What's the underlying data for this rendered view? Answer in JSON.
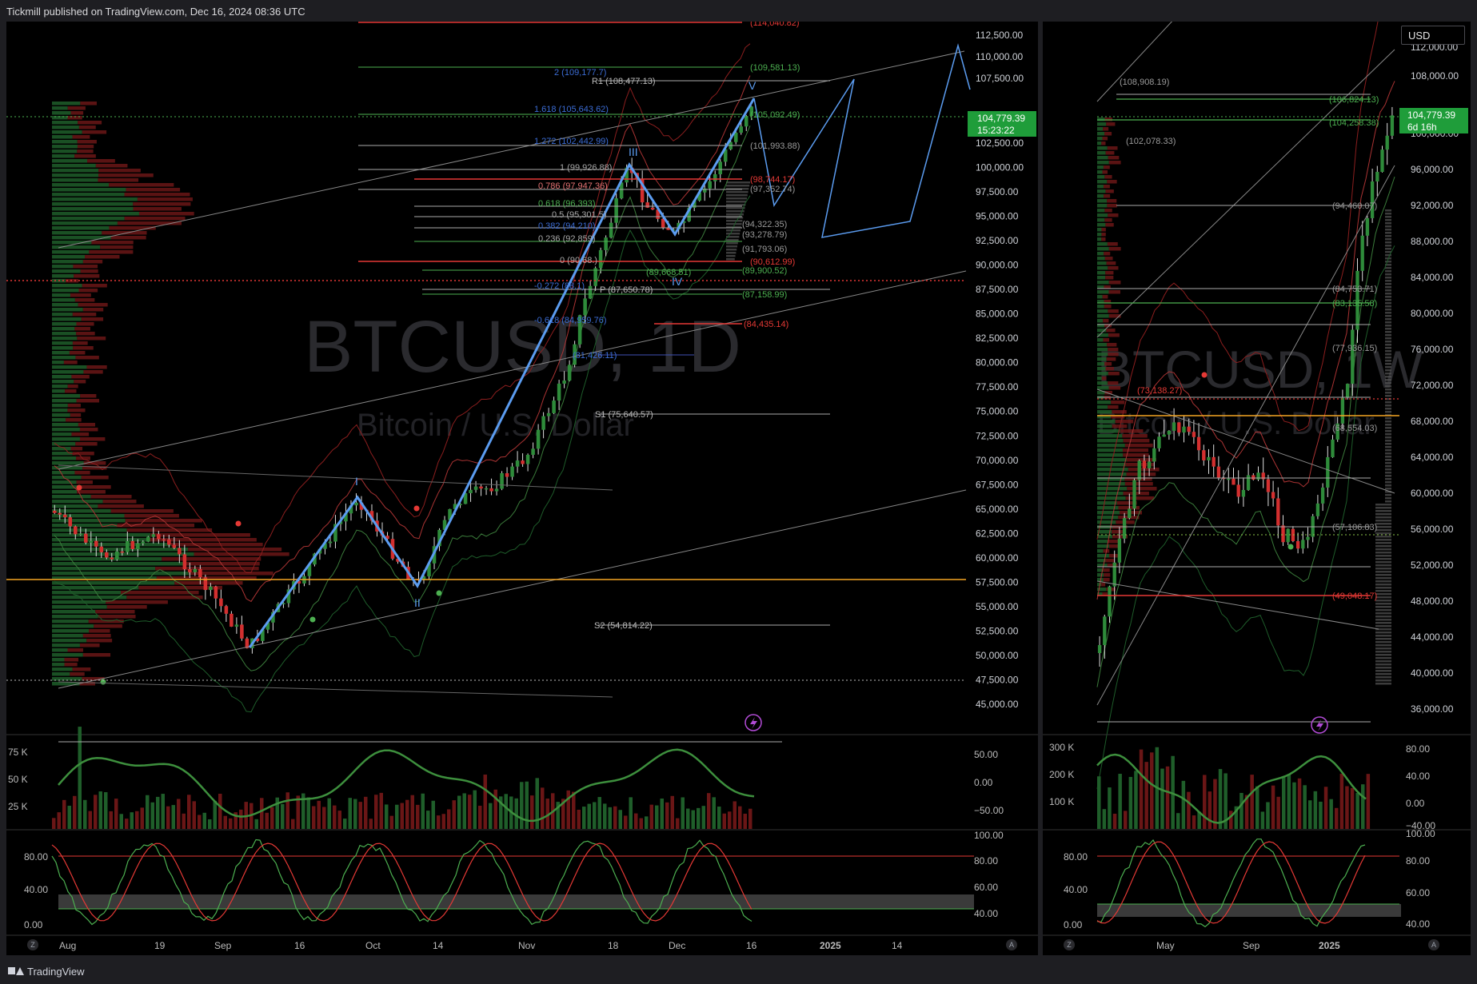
{
  "header": {
    "publisher_text": "Tickmill published on TradingView.com, Dec 16, 2024 08:36 UTC"
  },
  "footer": {
    "brand": "TradingView"
  },
  "left_chart": {
    "watermark_symbol": "BTCUSD, 1D",
    "watermark_name": "Bitcoin / U.S. Dollar",
    "price_axis_labels": [
      "112,500.00",
      "110,000.00",
      "107,500.00",
      "102,500.00",
      "100,000.00",
      "97,500.00",
      "95,000.00",
      "92,500.00",
      "90,000.00",
      "87,500.00",
      "85,000.00",
      "82,500.00",
      "80,000.00",
      "77,500.00",
      "75,000.00",
      "72,500.00",
      "70,000.00",
      "67,500.00",
      "65,000.00",
      "62,500.00",
      "60,000.00",
      "57,500.00",
      "55,000.00",
      "52,500.00",
      "50,000.00",
      "47,500.00",
      "45,000.00"
    ],
    "last_price": "104,779.39",
    "countdown": "15:23:22",
    "time_axis_labels": [
      "Aug",
      "19",
      "Sep",
      "16",
      "Oct",
      "14",
      "Nov",
      "18",
      "Dec",
      "16",
      "2025",
      "14"
    ],
    "fib_labels": [
      "2 (109,177.7)",
      "1.618 (105,643.62)",
      "1.272 (102,442.99)",
      "1 (99,926.88)",
      "0.786 (97,947.36)",
      "0.618 (96,393)",
      "0.5 (95,301.5)",
      "0.382 (94,210)",
      "0.236 (92,859)",
      "0 (90,68.)",
      "-0.272 (88,1)",
      "-0.618 (84,959.76)",
      "(81,426.11)"
    ],
    "pivot_labels": [
      "R1 (108,477.13)",
      "P (87,650.78)",
      "S1 (75,640.57)",
      "S2 (54,814.22)"
    ],
    "level_labels": [
      "(114,040.82)",
      "(109,581.13)",
      "(105,092.49)",
      "(101,993.88)",
      "(98,744.17)",
      "(97,352.74)",
      "(94,322.35)",
      "(93,278.79)",
      "(91,793.06)",
      "(90,612.99)",
      "(89,900.52)",
      "(89,668.51)",
      "(87,158.99)",
      "(84,435.14)"
    ],
    "wave_labels": [
      "I",
      "II",
      "III",
      "IV",
      "V"
    ],
    "volume_axis_labels": [
      "75 K",
      "50 K",
      "25 K"
    ],
    "osc1_axis_labels": [
      "50.00",
      "0.00",
      "−50.00"
    ],
    "stoch_left_labels": [
      "80.00",
      "40.00",
      "0.00"
    ],
    "stoch_right_labels": [
      "100.00",
      "80.00",
      "60.00",
      "40.00"
    ]
  },
  "right_chart": {
    "currency_button": "USD",
    "watermark_symbol": "BTCUSD, 1W",
    "watermark_name": "Bitcoin / U.S. Dollar",
    "price_axis_labels": [
      "112,000.00",
      "108,000.00",
      "100,000.00",
      "96,000.00",
      "92,000.00",
      "88,000.00",
      "84,000.00",
      "80,000.00",
      "76,000.00",
      "72,000.00",
      "68,000.00",
      "64,000.00",
      "60,000.00",
      "56,000.00",
      "52,000.00",
      "48,000.00",
      "44,000.00",
      "40,000.00",
      "36,000.00"
    ],
    "last_price": "104,779.39",
    "countdown": "6d 16h",
    "time_axis_labels": [
      "May",
      "Sep",
      "2025"
    ],
    "level_labels": [
      "(108,908.19)",
      "(106,824.13)",
      "(104,258.38)",
      "(102,078.33)",
      "(94,460.07)",
      "(84,753.71)",
      "(83,135.58)",
      "(77,936.15)",
      "(73,138.27)",
      "(68,554.03)",
      "(57,106.83)",
      "(49,048.17)"
    ],
    "volume_axis_labels": [
      "300 K",
      "200 K",
      "100 K"
    ],
    "osc1_axis_labels": [
      "80.00",
      "40.00",
      "0.00",
      "−40.00"
    ],
    "stoch_left_labels": [
      "80.00",
      "40.00",
      "0.00"
    ],
    "stoch_right_labels": [
      "100.00",
      "80.00",
      "60.00",
      "40.00"
    ]
  },
  "colors": {
    "up": "#2e8b3a",
    "down": "#d32f2f",
    "wave": "#5b9cf0",
    "level_orange": "#f5a623",
    "price_tag": "#1f9d3a"
  }
}
